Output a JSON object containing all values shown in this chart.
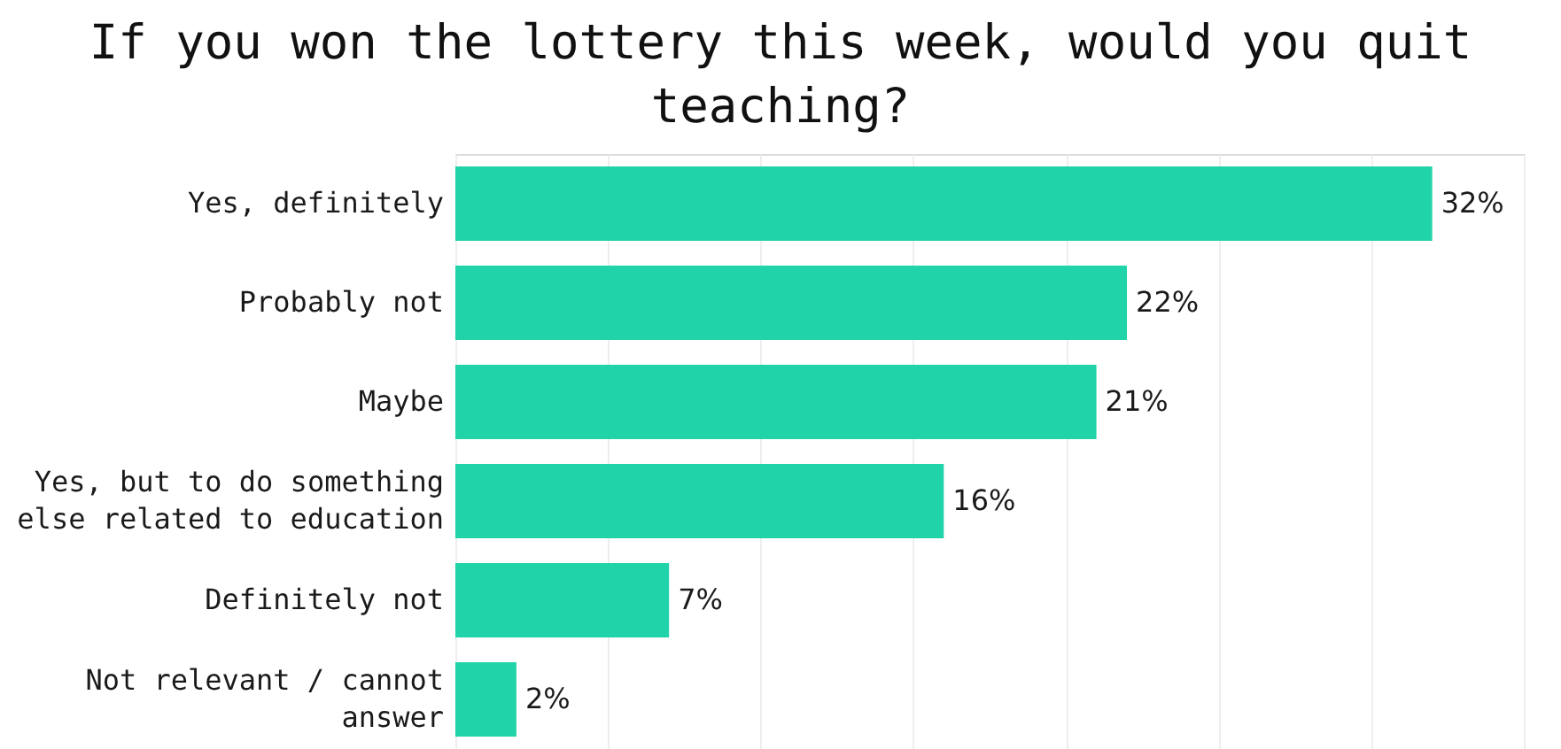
{
  "chart_data": {
    "type": "bar",
    "orientation": "horizontal",
    "title": "If you won the lottery this week, would you quit teaching?",
    "categories": [
      "Yes, definitely",
      "Probably not",
      "Maybe",
      "Yes, but to do something else related to education",
      "Definitely not",
      "Not relevant / cannot answer"
    ],
    "values": [
      32,
      22,
      21,
      16,
      7,
      2
    ],
    "value_labels": [
      "32%",
      "22%",
      "21%",
      "16%",
      "7%",
      "2%"
    ],
    "color": "#21d3a8",
    "xlim": [
      0,
      35
    ],
    "xticks": [
      {
        "value": 0,
        "label": null
      },
      {
        "value": 5,
        "label": null
      },
      {
        "value": 10,
        "label": null
      },
      {
        "value": 15,
        "label": null
      },
      {
        "value": 20,
        "label": null
      },
      {
        "value": 25,
        "label": null
      },
      {
        "value": 30,
        "label": null
      },
      {
        "value": 35,
        "label": null
      }
    ],
    "grid": "x",
    "tick_labels": "y"
  }
}
